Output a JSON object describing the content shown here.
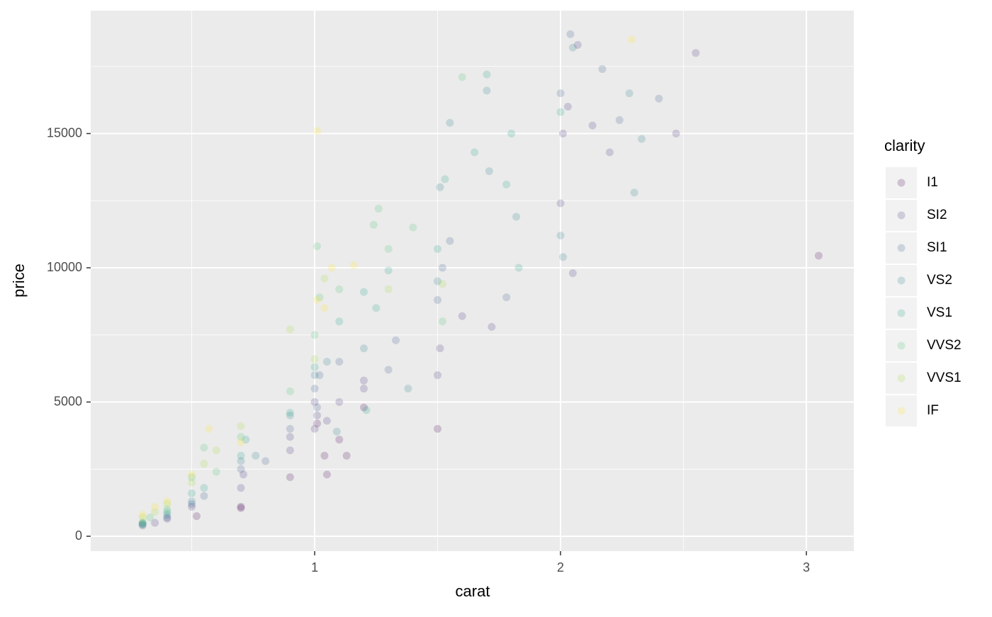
{
  "chart_data": {
    "type": "scatter",
    "x_label": "carat",
    "y_label": "price",
    "legend_title": "clarity",
    "xlim": [
      0.089,
      3.193
    ],
    "ylim": [
      -554,
      19578
    ],
    "xticks": [
      1,
      2,
      3
    ],
    "yticks": [
      0,
      5000,
      10000,
      15000
    ],
    "x_minor_grid": [
      0.5,
      1.5,
      2.5
    ],
    "y_minor_grid": [
      2500,
      7500,
      12500,
      17500
    ],
    "grid": true,
    "legend": "right",
    "point_opacity": 0.2,
    "series": [
      {
        "name": "I1",
        "color": "#440154",
        "x": [
          0.7,
          0.7,
          0.9,
          1.05,
          1.04,
          1.5,
          1.13,
          3.05,
          1.2,
          0.52,
          1.01,
          1.1
        ],
        "values": [
          1050,
          1100,
          2200,
          2300,
          3000,
          4000,
          3000,
          10450,
          4800,
          750,
          4200,
          3600
        ]
      },
      {
        "name": "SI2",
        "color": "#46337E",
        "x": [
          0.3,
          0.35,
          0.4,
          0.5,
          0.7,
          0.71,
          0.9,
          1.0,
          1.01,
          1.05,
          1.1,
          1.2,
          1.5,
          1.51,
          1.6,
          1.72,
          2.0,
          2.01,
          2.05,
          2.03,
          2.13,
          2.07,
          2.55,
          2.47,
          2.2,
          1.0,
          1.2,
          0.9
        ],
        "values": [
          400,
          500,
          650,
          1100,
          1800,
          2300,
          3200,
          4000,
          4500,
          4300,
          5000,
          5500,
          6000,
          7000,
          8200,
          7800,
          12400,
          15000,
          9800,
          16000,
          15300,
          18300,
          18000,
          15000,
          14300,
          5000,
          5800,
          3700
        ]
      },
      {
        "name": "SI1",
        "color": "#365C8D",
        "x": [
          0.3,
          0.4,
          0.5,
          0.55,
          0.7,
          0.8,
          0.9,
          1.0,
          1.02,
          1.1,
          1.3,
          1.5,
          1.52,
          1.55,
          1.78,
          2.0,
          2.04,
          2.4,
          2.17,
          2.24,
          1.33,
          1.01
        ],
        "values": [
          450,
          700,
          1200,
          1500,
          2500,
          2800,
          4000,
          5500,
          6000,
          6500,
          6200,
          8800,
          10000,
          11000,
          8900,
          16500,
          18700,
          16300,
          17400,
          15500,
          7300,
          4800
        ]
      },
      {
        "name": "VS2",
        "color": "#277F8E",
        "x": [
          0.3,
          0.4,
          0.5,
          0.7,
          0.9,
          1.0,
          1.05,
          1.2,
          1.5,
          1.51,
          1.55,
          1.7,
          1.71,
          2.0,
          2.01,
          2.28,
          2.3,
          2.33,
          2.05,
          1.82,
          1.38,
          0.76,
          1.09
        ],
        "values": [
          500,
          800,
          1300,
          2800,
          4500,
          6000,
          6500,
          7000,
          9500,
          13000,
          15400,
          16600,
          13600,
          11200,
          10400,
          16500,
          12800,
          14800,
          18200,
          11900,
          5500,
          3000,
          3900
        ]
      },
      {
        "name": "VS1",
        "color": "#1FA187",
        "x": [
          0.3,
          0.4,
          0.5,
          0.55,
          0.7,
          0.72,
          0.9,
          1.0,
          1.1,
          1.2,
          1.25,
          1.3,
          1.5,
          1.53,
          1.7,
          1.65,
          1.83,
          1.8,
          1.78,
          2.0,
          1.21
        ],
        "values": [
          450,
          900,
          1600,
          1800,
          3000,
          3600,
          4600,
          6300,
          8000,
          9100,
          8500,
          9900,
          10700,
          13300,
          17200,
          14300,
          10000,
          15000,
          13100,
          15800,
          4700
        ]
      },
      {
        "name": "VVS2",
        "color": "#4AC16D",
        "x": [
          0.3,
          0.33,
          0.4,
          0.5,
          0.55,
          0.6,
          0.7,
          0.9,
          1.0,
          1.01,
          1.02,
          1.1,
          1.26,
          1.3,
          1.4,
          1.6,
          1.52,
          1.24
        ],
        "values": [
          500,
          700,
          1000,
          2200,
          3300,
          2400,
          3700,
          5400,
          7500,
          10800,
          8900,
          9200,
          12200,
          10700,
          11500,
          17100,
          8000,
          11600
        ]
      },
      {
        "name": "VVS1",
        "color": "#9FDA3A",
        "x": [
          0.3,
          0.35,
          0.4,
          0.5,
          0.55,
          0.6,
          0.7,
          0.9,
          1.0,
          1.04,
          1.3,
          1.52
        ],
        "values": [
          700,
          900,
          1200,
          2000,
          2700,
          3200,
          4100,
          7700,
          6600,
          9600,
          9200,
          9400
        ]
      },
      {
        "name": "IF",
        "color": "#FDE725",
        "x": [
          0.3,
          0.35,
          0.4,
          0.5,
          0.57,
          0.7,
          1.01,
          1.01,
          1.16,
          2.29,
          1.04,
          1.07
        ],
        "values": [
          800,
          1100,
          1300,
          2300,
          4000,
          3500,
          15100,
          8800,
          10100,
          18500,
          8500,
          10000
        ]
      }
    ]
  }
}
